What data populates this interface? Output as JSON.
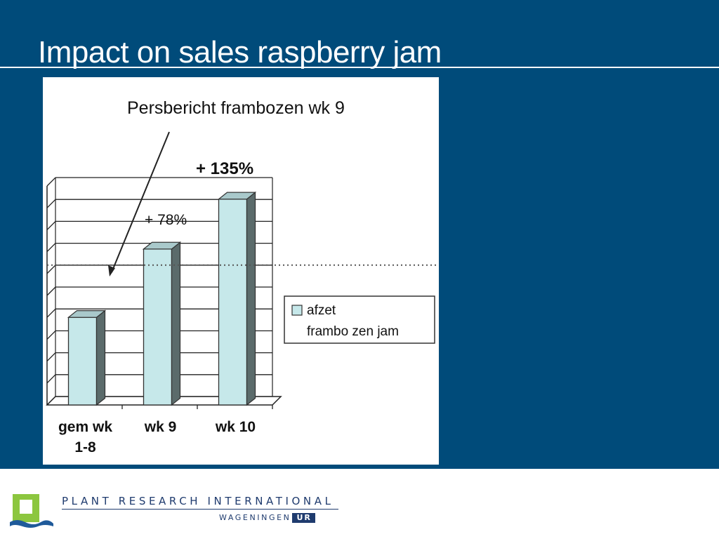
{
  "slide": {
    "title": "Impact on sales raspberry jam"
  },
  "chart_data": {
    "type": "bar",
    "title": "Persbericht frambozen wk 9",
    "categories": [
      "gem wk 1-8",
      "wk 9",
      "wk 10"
    ],
    "category_lines": [
      [
        "gem wk",
        "1-8"
      ],
      [
        "wk 9"
      ],
      [
        "wk 10"
      ]
    ],
    "values": [
      100,
      178,
      235
    ],
    "series": [
      {
        "name": "afzet frambozen jam",
        "values": [
          100,
          178,
          235
        ]
      }
    ],
    "legend_lines": [
      "afzet",
      "frambo zen jam"
    ],
    "annotations": [
      "+ 78%",
      "+ 135%"
    ],
    "reference_line": 150,
    "ylim": [
      0,
      250
    ],
    "grid": true,
    "legend": "right",
    "bar_color": "#c6e8ea",
    "bar_side_color": "#5b6b6b"
  },
  "footer": {
    "organization": "PLANT RESEARCH INTERNATIONAL",
    "institution_prefix": "WAGENINGEN",
    "institution_suffix": "UR"
  }
}
